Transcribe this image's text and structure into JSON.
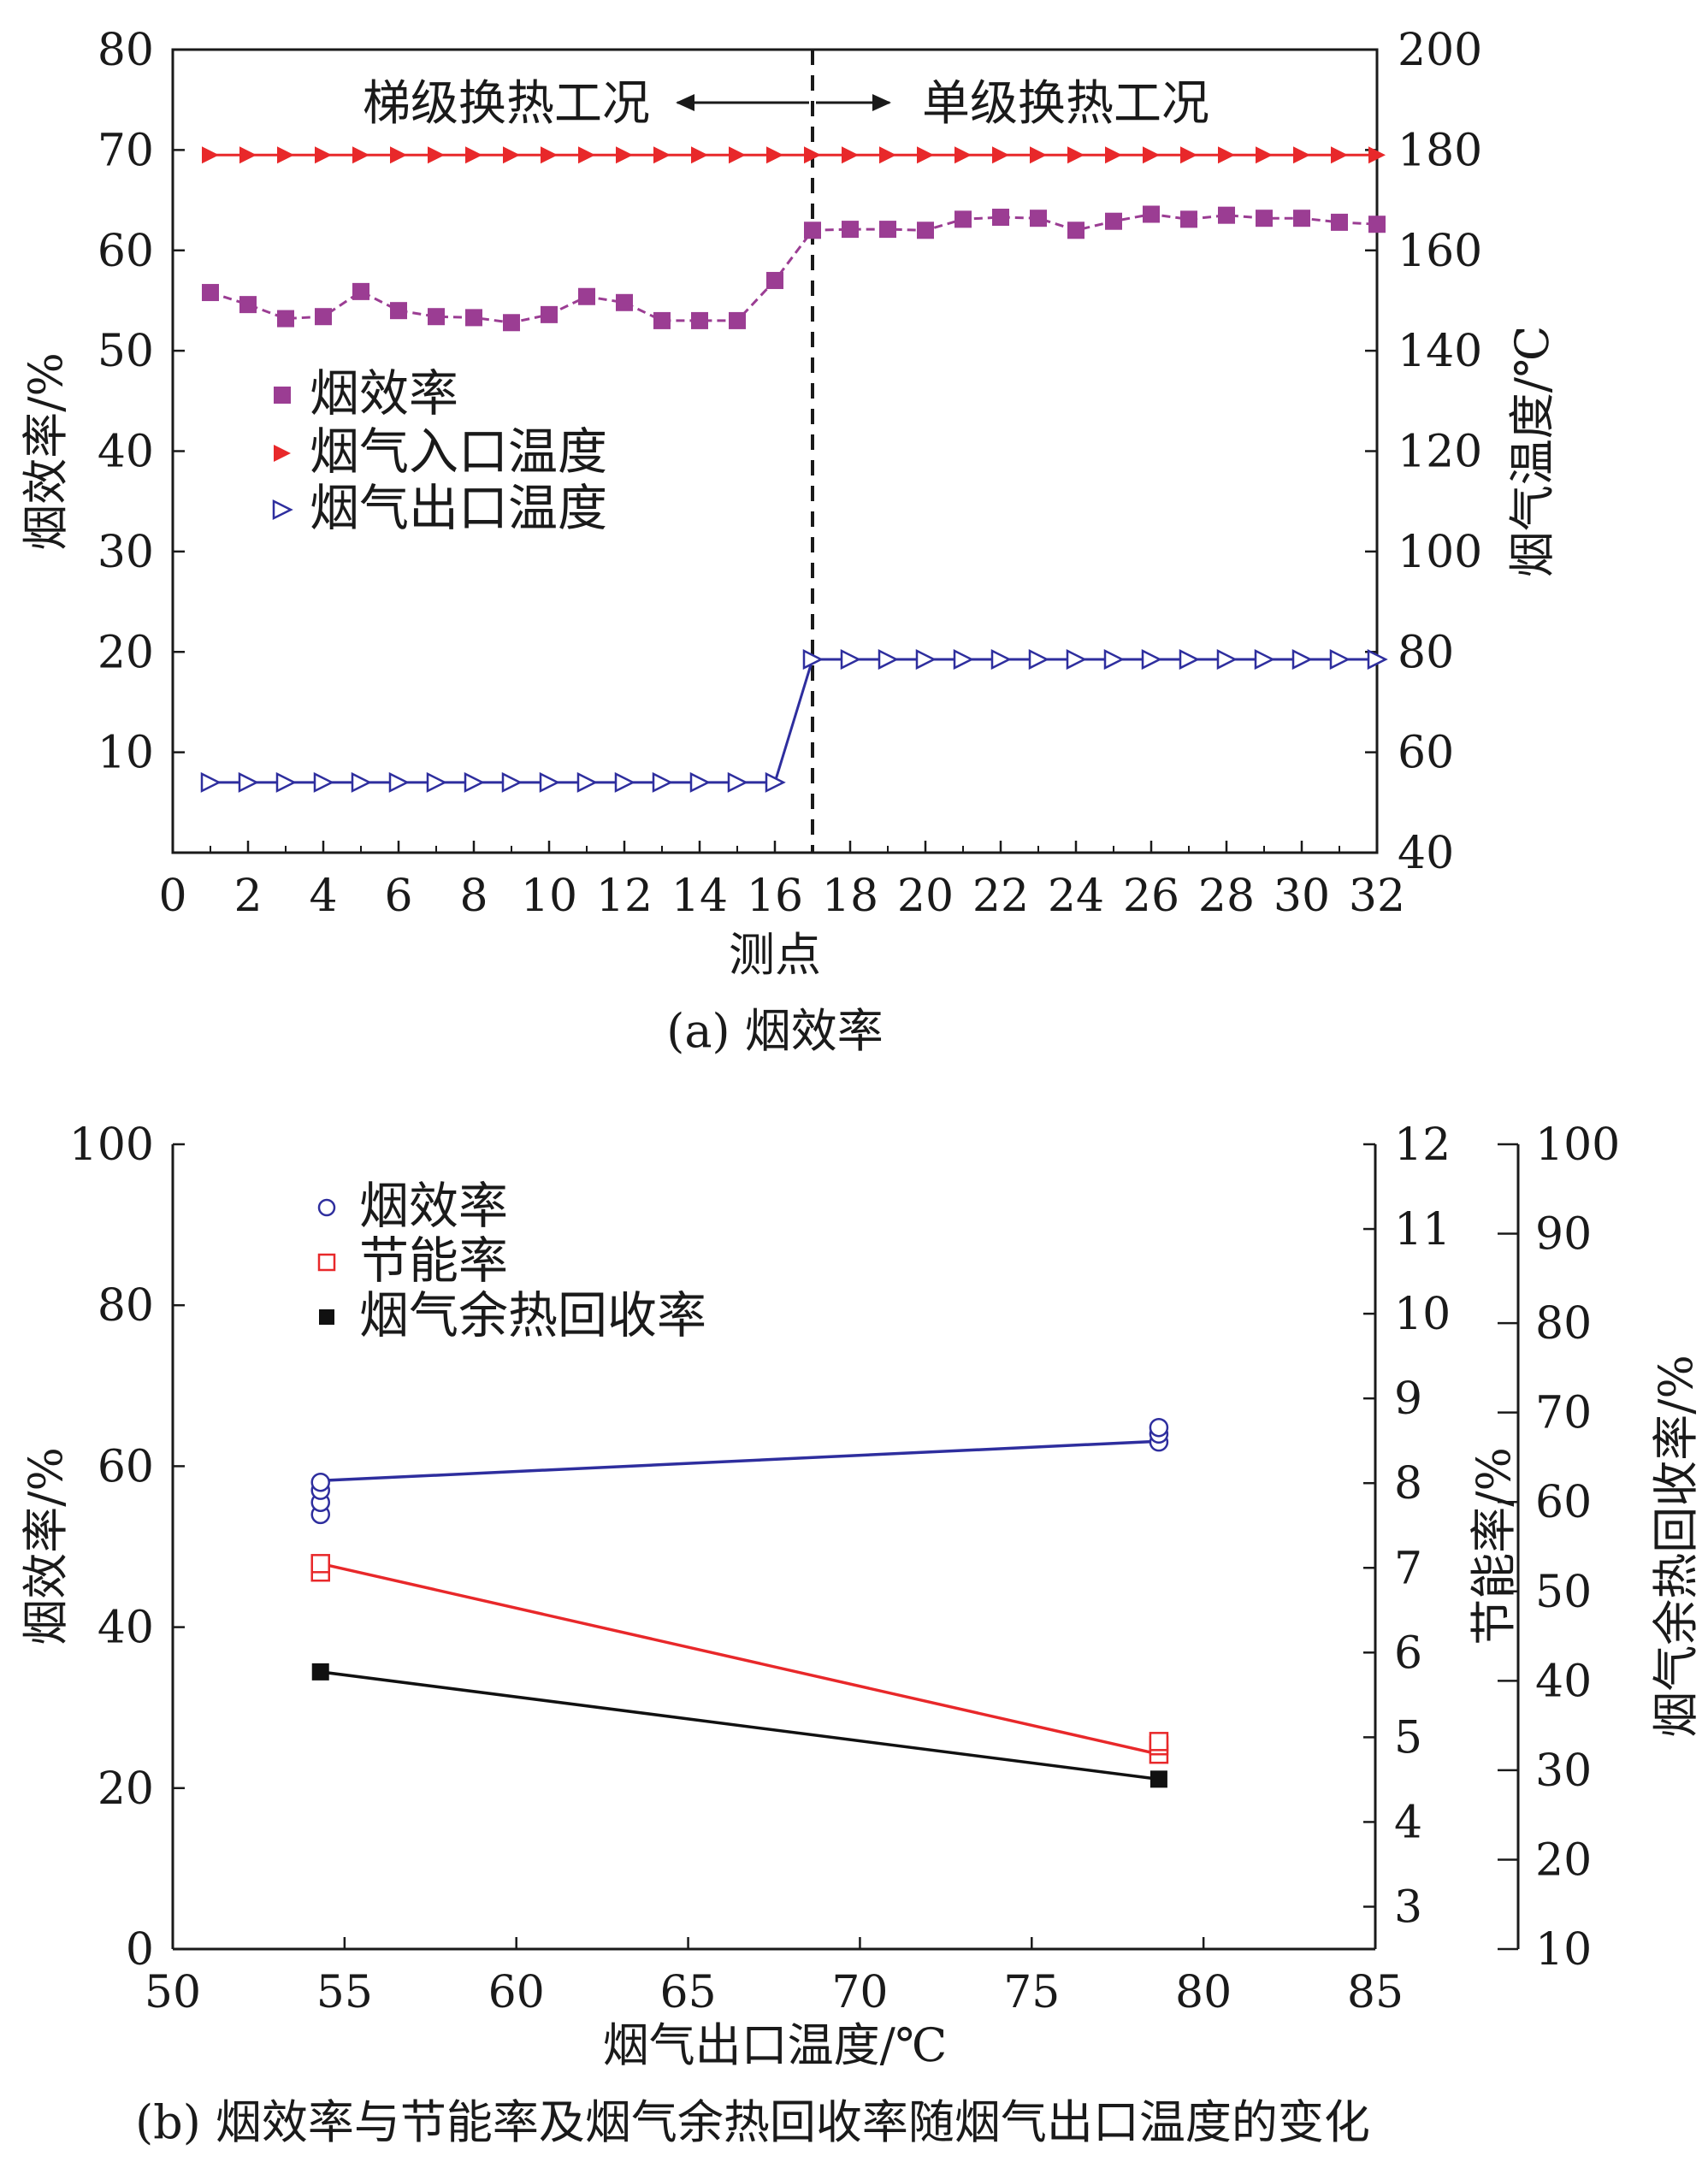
{
  "chart_data": [
    {
      "type": "line",
      "caption": "(a) 烟效率",
      "xlabel": "测点",
      "ylabel": "烟效率/%",
      "y2label": "烟气温度/℃",
      "xlim": [
        0,
        32
      ],
      "ylim": [
        0,
        80
      ],
      "y2lim": [
        40,
        200
      ],
      "xticks": [
        0,
        2,
        4,
        6,
        8,
        10,
        12,
        14,
        16,
        18,
        20,
        22,
        24,
        26,
        28,
        30,
        32
      ],
      "yticks": [
        10,
        20,
        30,
        40,
        50,
        60,
        70,
        80
      ],
      "y2ticks": [
        40,
        60,
        80,
        100,
        120,
        140,
        160,
        180,
        200
      ],
      "divider_x": 17,
      "annotations": {
        "left": "梯级换热工况",
        "right": "单级换热工况"
      },
      "legend_position": "center-left",
      "x": [
        1,
        2,
        3,
        4,
        5,
        6,
        7,
        8,
        9,
        10,
        11,
        12,
        13,
        14,
        15,
        16,
        17,
        18,
        19,
        20,
        21,
        22,
        23,
        24,
        25,
        26,
        27,
        28,
        29,
        30,
        31,
        32
      ],
      "series": [
        {
          "name": "烟效率",
          "axis": "left",
          "marker": "square-filled",
          "color": "#9b3d93",
          "line_color": "#9b3d93",
          "dashed": true,
          "values": [
            55.8,
            54.6,
            53.2,
            53.4,
            55.9,
            54.0,
            53.4,
            53.3,
            52.8,
            53.6,
            55.4,
            54.8,
            53.0,
            53.0,
            53.0,
            57.0,
            62.0,
            62.1,
            62.1,
            62.0,
            63.1,
            63.3,
            63.2,
            62.0,
            62.9,
            63.6,
            63.1,
            63.5,
            63.2,
            63.2,
            62.8,
            62.6
          ]
        },
        {
          "name": "烟气入口温度",
          "axis": "right",
          "marker": "triangle-right-filled",
          "color": "#e8282a",
          "line_color": "#e8282a",
          "dashed": false,
          "values": [
            179,
            179,
            179,
            179,
            179,
            179,
            179,
            179,
            179,
            179,
            179,
            179,
            179,
            179,
            179,
            179,
            179,
            179,
            179,
            179,
            179,
            179,
            179,
            179,
            179,
            179,
            179,
            179,
            179,
            179,
            179,
            179
          ]
        },
        {
          "name": "烟气出口温度",
          "axis": "right",
          "marker": "triangle-right-open",
          "color": "#2e2e9e",
          "line_color": "#2e2e9e",
          "dashed": false,
          "values": [
            54,
            54,
            54,
            54,
            54,
            54,
            54,
            54,
            54,
            54,
            54,
            54,
            54,
            54,
            54,
            54,
            78.5,
            78.5,
            78.5,
            78.5,
            78.5,
            78.5,
            78.5,
            78.5,
            78.5,
            78.5,
            78.5,
            78.5,
            78.5,
            78.5,
            78.5,
            78.5
          ]
        }
      ]
    },
    {
      "type": "scatter",
      "caption": "(b) 烟效率与节能率及烟气余热回收率随烟气出口温度的变化",
      "xlabel": "烟气出口温度/℃",
      "ylabel": "烟效率/%",
      "y2label": "节能率/%",
      "y3label": "烟气余热回收率/%",
      "xlim": [
        50,
        85
      ],
      "ylim": [
        0,
        100
      ],
      "y2lim": [
        2.5,
        12
      ],
      "y3lim": [
        10,
        100
      ],
      "xticks": [
        50,
        55,
        60,
        65,
        70,
        75,
        80,
        85
      ],
      "yticks": [
        0,
        20,
        40,
        60,
        80,
        100
      ],
      "y2ticks": [
        3,
        4,
        5,
        6,
        7,
        8,
        9,
        10,
        11,
        12
      ],
      "y3ticks": [
        10,
        20,
        30,
        40,
        50,
        60,
        70,
        80,
        90,
        100
      ],
      "legend_position": "top-left",
      "series": [
        {
          "name": "烟效率",
          "axis": "left",
          "marker": "circle-open",
          "color": "#2e2e9e",
          "points": [
            [
              54.3,
              54
            ],
            [
              54.3,
              55.5
            ],
            [
              54.3,
              57
            ],
            [
              54.3,
              58
            ],
            [
              78.7,
              63
            ],
            [
              78.7,
              64
            ],
            [
              78.7,
              64.8
            ]
          ],
          "fit": [
            [
              54.3,
              58.2
            ],
            [
              78.7,
              63.1
            ]
          ]
        },
        {
          "name": "节能率",
          "axis": "y2",
          "marker": "square-open",
          "color": "#e8282a",
          "points": [
            [
              54.3,
              6.95
            ],
            [
              54.3,
              7.05
            ],
            [
              78.7,
              4.8
            ],
            [
              78.7,
              4.9
            ],
            [
              78.7,
              4.95
            ]
          ],
          "fit": [
            [
              54.3,
              7.05
            ],
            [
              78.7,
              4.8
            ]
          ]
        },
        {
          "name": "烟气余热回收率",
          "axis": "y3",
          "marker": "square-filled",
          "color": "#111111",
          "points": [
            [
              54.3,
              41
            ],
            [
              78.7,
              29
            ]
          ],
          "fit": [
            [
              54.3,
              41
            ],
            [
              78.7,
              29
            ]
          ]
        }
      ]
    }
  ]
}
